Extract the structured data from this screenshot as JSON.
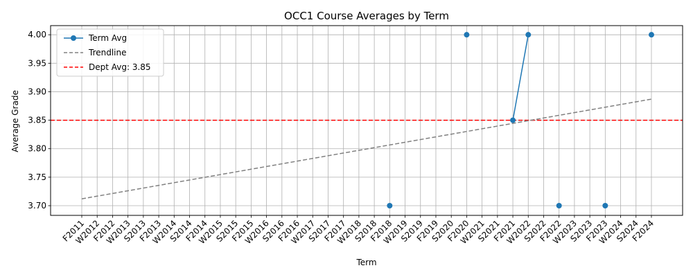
{
  "chart_data": {
    "type": "line",
    "title": "OCC1 Course Averages by Term",
    "xlabel": "Term",
    "ylabel": "Average Grade",
    "categories": [
      "F2011",
      "W2012",
      "F2012",
      "W2013",
      "S2013",
      "F2013",
      "W2014",
      "S2014",
      "F2014",
      "W2015",
      "S2015",
      "F2015",
      "W2016",
      "S2016",
      "F2016",
      "W2017",
      "S2017",
      "F2017",
      "W2018",
      "S2018",
      "F2018",
      "W2019",
      "S2019",
      "F2019",
      "S2020",
      "F2020",
      "W2021",
      "S2021",
      "F2021",
      "W2022",
      "S2022",
      "F2022",
      "W2023",
      "S2023",
      "F2023",
      "W2024",
      "S2024",
      "F2024"
    ],
    "ylim": [
      3.683,
      4.016
    ],
    "yticks": [
      "3.70",
      "3.75",
      "3.80",
      "3.85",
      "3.90",
      "3.95",
      "4.00"
    ],
    "grid": true,
    "legend_position": "top-left",
    "series": [
      {
        "name": "Term Avg",
        "color": "#1f77b4",
        "values": [
          null,
          null,
          null,
          null,
          null,
          null,
          null,
          null,
          null,
          null,
          null,
          null,
          null,
          null,
          null,
          null,
          null,
          null,
          null,
          null,
          3.7,
          null,
          null,
          null,
          null,
          4.0,
          null,
          null,
          3.85,
          4.0,
          null,
          3.7,
          null,
          null,
          3.7,
          null,
          null,
          4.0
        ]
      }
    ],
    "trendline": {
      "name": "Trendline",
      "color": "#808080",
      "start": 3.712,
      "end": 3.887
    },
    "reference_line": {
      "name": "Dept Avg: 3.85",
      "value": 3.85,
      "color": "#ff0000"
    }
  }
}
